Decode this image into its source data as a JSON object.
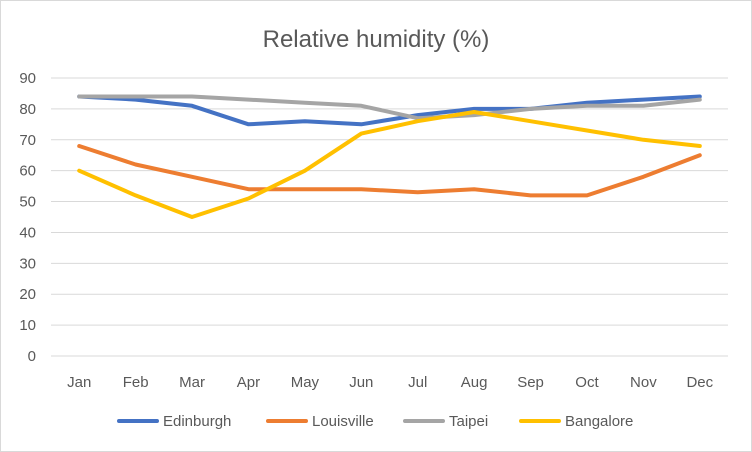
{
  "chart_data": {
    "type": "line",
    "title": "Relative humidity (%)",
    "xlabel": "",
    "ylabel": "",
    "ylim": [
      0,
      90
    ],
    "yticks": [
      0,
      10,
      20,
      30,
      40,
      50,
      60,
      70,
      80,
      90
    ],
    "grid": true,
    "legend_position": "bottom",
    "categories": [
      "Jan",
      "Feb",
      "Mar",
      "Apr",
      "May",
      "Jun",
      "Jul",
      "Aug",
      "Sep",
      "Oct",
      "Nov",
      "Dec"
    ],
    "series": [
      {
        "name": "Edinburgh",
        "color": "#4472c4",
        "values": [
          84,
          83,
          81,
          75,
          76,
          75,
          78,
          80,
          80,
          82,
          83,
          84
        ]
      },
      {
        "name": "Louisville",
        "color": "#ed7d31",
        "values": [
          68,
          62,
          58,
          54,
          54,
          54,
          53,
          54,
          52,
          52,
          58,
          65
        ]
      },
      {
        "name": "Taipei",
        "color": "#a5a5a5",
        "values": [
          84,
          84,
          84,
          83,
          82,
          81,
          77,
          78,
          80,
          81,
          81,
          83
        ]
      },
      {
        "name": "Bangalore",
        "color": "#ffc000",
        "values": [
          60,
          52,
          45,
          51,
          60,
          72,
          76,
          79,
          76,
          73,
          70,
          68
        ]
      }
    ]
  }
}
